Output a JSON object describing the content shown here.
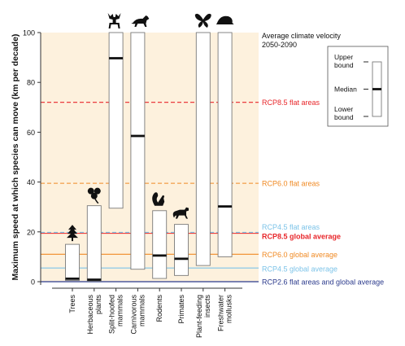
{
  "chart_data": {
    "type": "range-box",
    "ylabel": "Maximum speed at which species can move (km per decade)",
    "ylim": [
      0,
      100
    ],
    "yticks": [
      0,
      20,
      40,
      60,
      80,
      100
    ],
    "categories": [
      "Trees",
      "Herbaceous plants",
      "Split-hoofed mammals",
      "Carnivorous mammals",
      "Rodents",
      "Primates",
      "Plant-feeding insects",
      "Freshwater mollusks"
    ],
    "category_lines": [
      [
        "Trees"
      ],
      [
        "Herbaceous",
        "plants"
      ],
      [
        "Split-hoofed",
        "mammals"
      ],
      [
        "Carnivorous",
        "mammals"
      ],
      [
        "Rodents"
      ],
      [
        "Primates"
      ],
      [
        "Plant-feeding",
        "insects"
      ],
      [
        "Freshwater",
        "mollusks"
      ]
    ],
    "series": [
      {
        "category": "Trees",
        "lower": 0.5,
        "median": 1.2,
        "upper": 15,
        "icon": "tree-icon"
      },
      {
        "category": "Herbaceous plants",
        "lower": 0.2,
        "median": 0.8,
        "upper": 30.5,
        "icon": "herb-icon"
      },
      {
        "category": "Split-hoofed mammals",
        "lower": 29.5,
        "median": 89.7,
        "upper": 100,
        "icon": "moose-icon"
      },
      {
        "category": "Carnivorous mammals",
        "lower": 5,
        "median": 58.5,
        "upper": 100,
        "icon": "wolf-icon"
      },
      {
        "category": "Rodents",
        "lower": 1.3,
        "median": 10.5,
        "upper": 28.5,
        "icon": "squirrel-icon"
      },
      {
        "category": "Primates",
        "lower": 2.5,
        "median": 9.2,
        "upper": 23,
        "icon": "monkey-icon"
      },
      {
        "category": "Plant-feeding insects",
        "lower": 6.5,
        "median": null,
        "upper": 100,
        "icon": "butterfly-icon"
      },
      {
        "category": "Freshwater mollusks",
        "lower": 10,
        "median": 30.2,
        "upper": 100,
        "icon": "snail-icon"
      }
    ],
    "reference_lines": [
      {
        "label": "RCP8.5 flat areas",
        "value": 72,
        "style": "dashed",
        "color": "#e8262a"
      },
      {
        "label": "RCP6.0 flat areas",
        "value": 39.5,
        "style": "dashed",
        "color": "#f08a24"
      },
      {
        "label": "RCP4.5 flat areas",
        "value": 19.8,
        "style": "dashed",
        "color": "#7cc3e8"
      },
      {
        "label": "RCP8.5 global average",
        "value": 19.4,
        "style": "solid",
        "color": "#e8262a"
      },
      {
        "label": "RCP6.0 global average",
        "value": 11,
        "style": "solid",
        "color": "#f08a24"
      },
      {
        "label": "RCP4.5 global average",
        "value": 5.5,
        "style": "solid",
        "color": "#7cc3e8"
      },
      {
        "label": "RCP2.6  flat areas and global average",
        "value": 0,
        "style": "solid",
        "color": "#2b3a8c"
      }
    ],
    "velocity_title": [
      "Average climate velocity",
      "2050-2090"
    ],
    "legend": {
      "upper": [
        "Upper",
        "bound"
      ],
      "median": "Median",
      "lower": [
        "Lower",
        "bound"
      ]
    },
    "colors": {
      "band": "#fdf1dd",
      "box_fill": "#ffffff",
      "box_stroke": "#7a7a7a",
      "median": "#111111",
      "axis": "#333333",
      "label_text": "#111111"
    }
  }
}
